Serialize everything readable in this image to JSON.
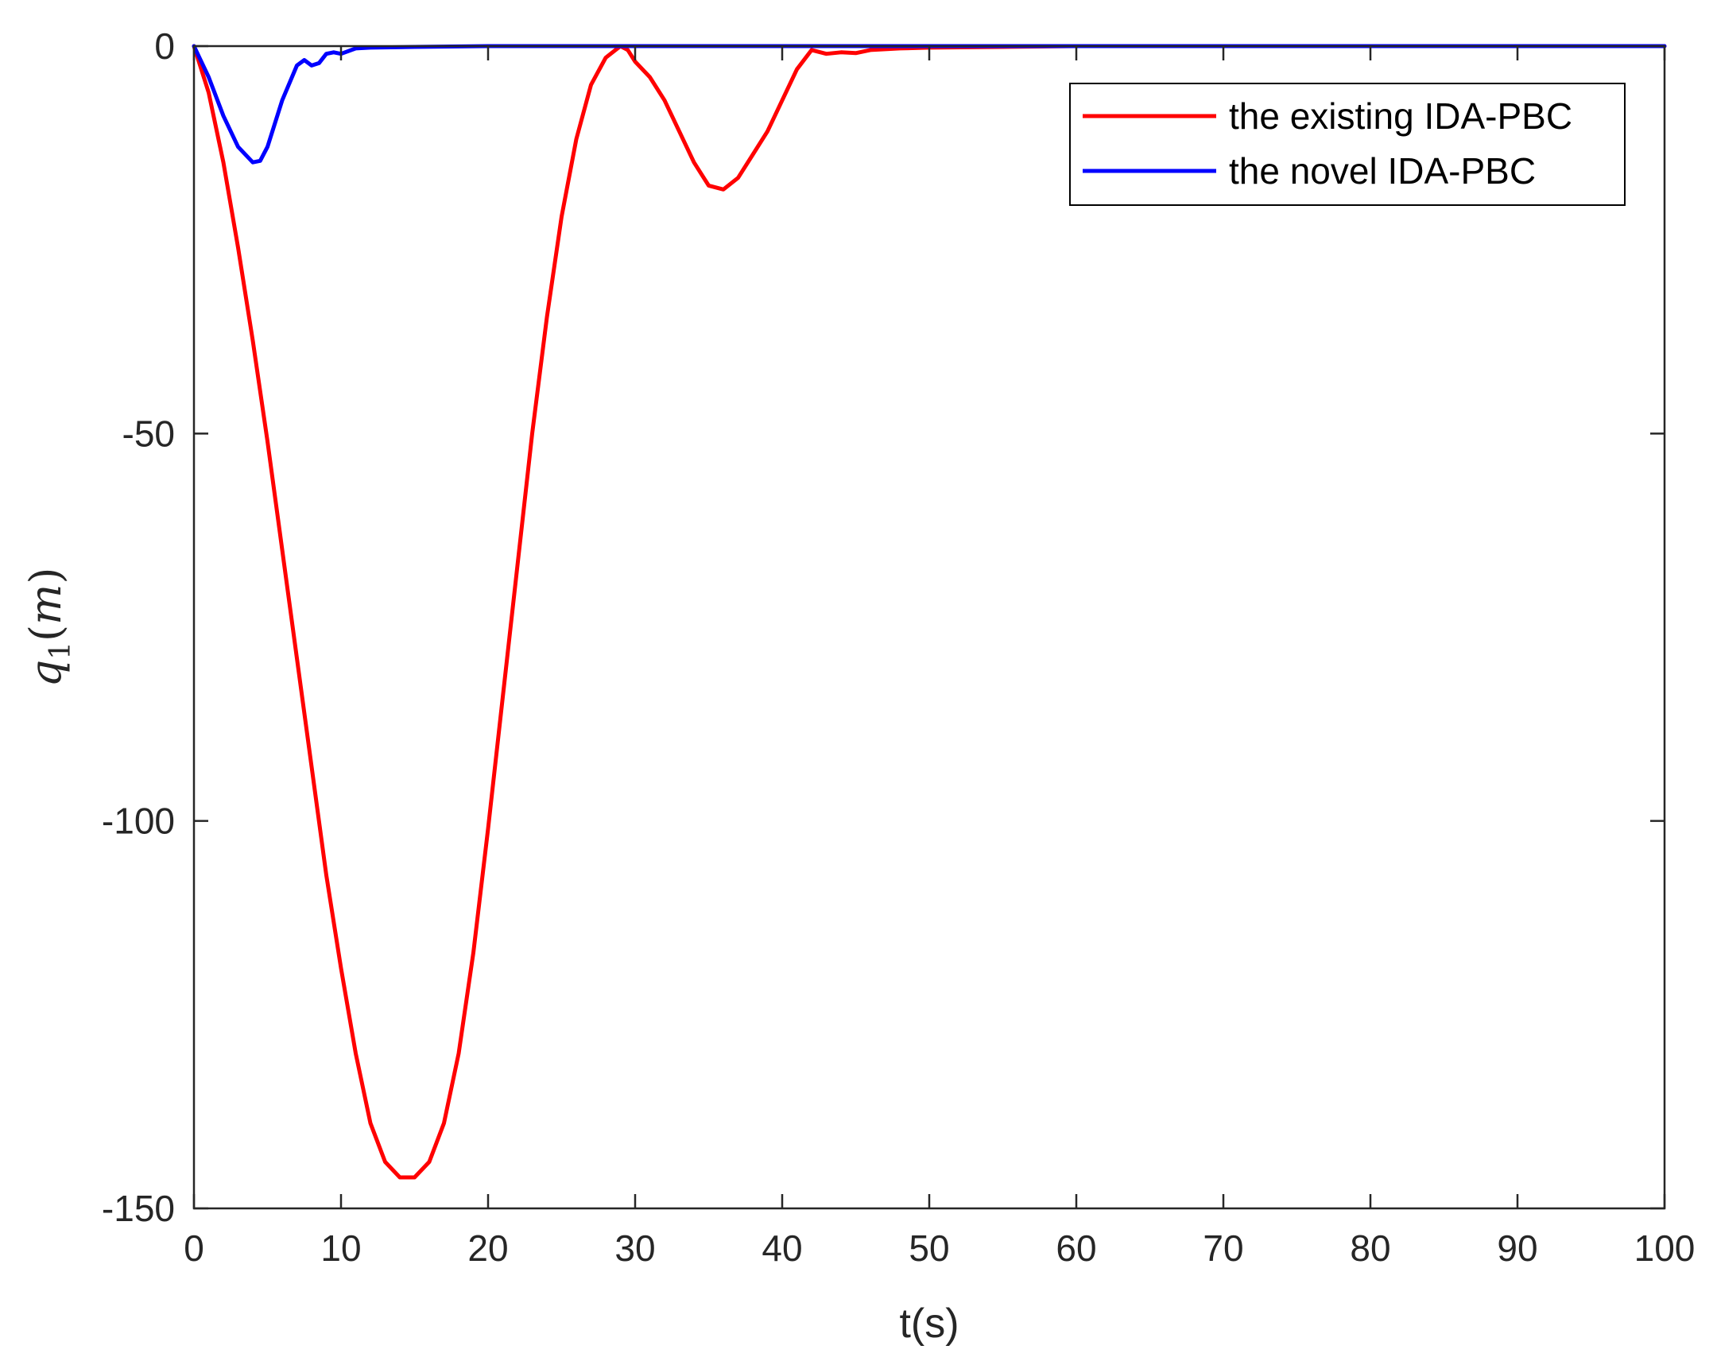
{
  "chart_data": {
    "type": "line",
    "title": "",
    "xlabel": "t(s)",
    "ylabel": {
      "symbol": "q",
      "subscript": "1",
      "unit_open": "(",
      "unit": "m",
      "unit_close": ")"
    },
    "xlim": [
      0,
      100
    ],
    "ylim": [
      -150,
      0
    ],
    "xticks": [
      0,
      10,
      20,
      30,
      40,
      50,
      60,
      70,
      80,
      90,
      100
    ],
    "yticks": [
      0,
      -50,
      -100,
      -150
    ],
    "grid": false,
    "legend_position": "top-right",
    "series": [
      {
        "name": "the existing IDA-PBC",
        "color": "#ff0000",
        "x": [
          0,
          1,
          2,
          3,
          4,
          5,
          6,
          7,
          8,
          9,
          10,
          11,
          12,
          13,
          14,
          14.5,
          15,
          16,
          17,
          18,
          19,
          20,
          21,
          22,
          23,
          24,
          25,
          26,
          27,
          28,
          29,
          29.5,
          30,
          31,
          32,
          33,
          34,
          35,
          36,
          37,
          38,
          39,
          40,
          41,
          42,
          43,
          44,
          45,
          46,
          48,
          50,
          55,
          60,
          70,
          80,
          90,
          100
        ],
        "y": [
          0,
          -6,
          -15,
          -26,
          -38,
          -51,
          -65,
          -79,
          -93,
          -107,
          -119,
          -130,
          -139,
          -144,
          -146,
          -146,
          -146,
          -144,
          -139,
          -130,
          -117,
          -101,
          -84,
          -67,
          -50,
          -35,
          -22,
          -12,
          -5,
          -1.5,
          0,
          -0.5,
          -2,
          -4,
          -7,
          -11,
          -15,
          -18,
          -18.5,
          -17,
          -14,
          -11,
          -7,
          -3,
          -0.5,
          -1,
          -0.8,
          -0.9,
          -0.5,
          -0.3,
          -0.2,
          -0.1,
          0,
          0,
          0,
          0,
          0
        ]
      },
      {
        "name": "the novel IDA-PBC",
        "color": "#0000ff",
        "x": [
          0,
          1,
          2,
          3,
          4,
          4.5,
          5,
          6,
          7,
          7.5,
          8,
          8.5,
          9,
          9.5,
          10,
          11,
          12,
          15,
          20,
          30,
          40,
          50,
          60,
          70,
          80,
          90,
          100
        ],
        "y": [
          0,
          -4,
          -9,
          -13,
          -15,
          -14.8,
          -13,
          -7,
          -2.5,
          -1.8,
          -2.5,
          -2.2,
          -1,
          -0.8,
          -1,
          -0.3,
          -0.2,
          -0.1,
          0,
          0,
          0,
          0,
          0,
          0,
          0,
          0,
          0
        ]
      }
    ]
  }
}
